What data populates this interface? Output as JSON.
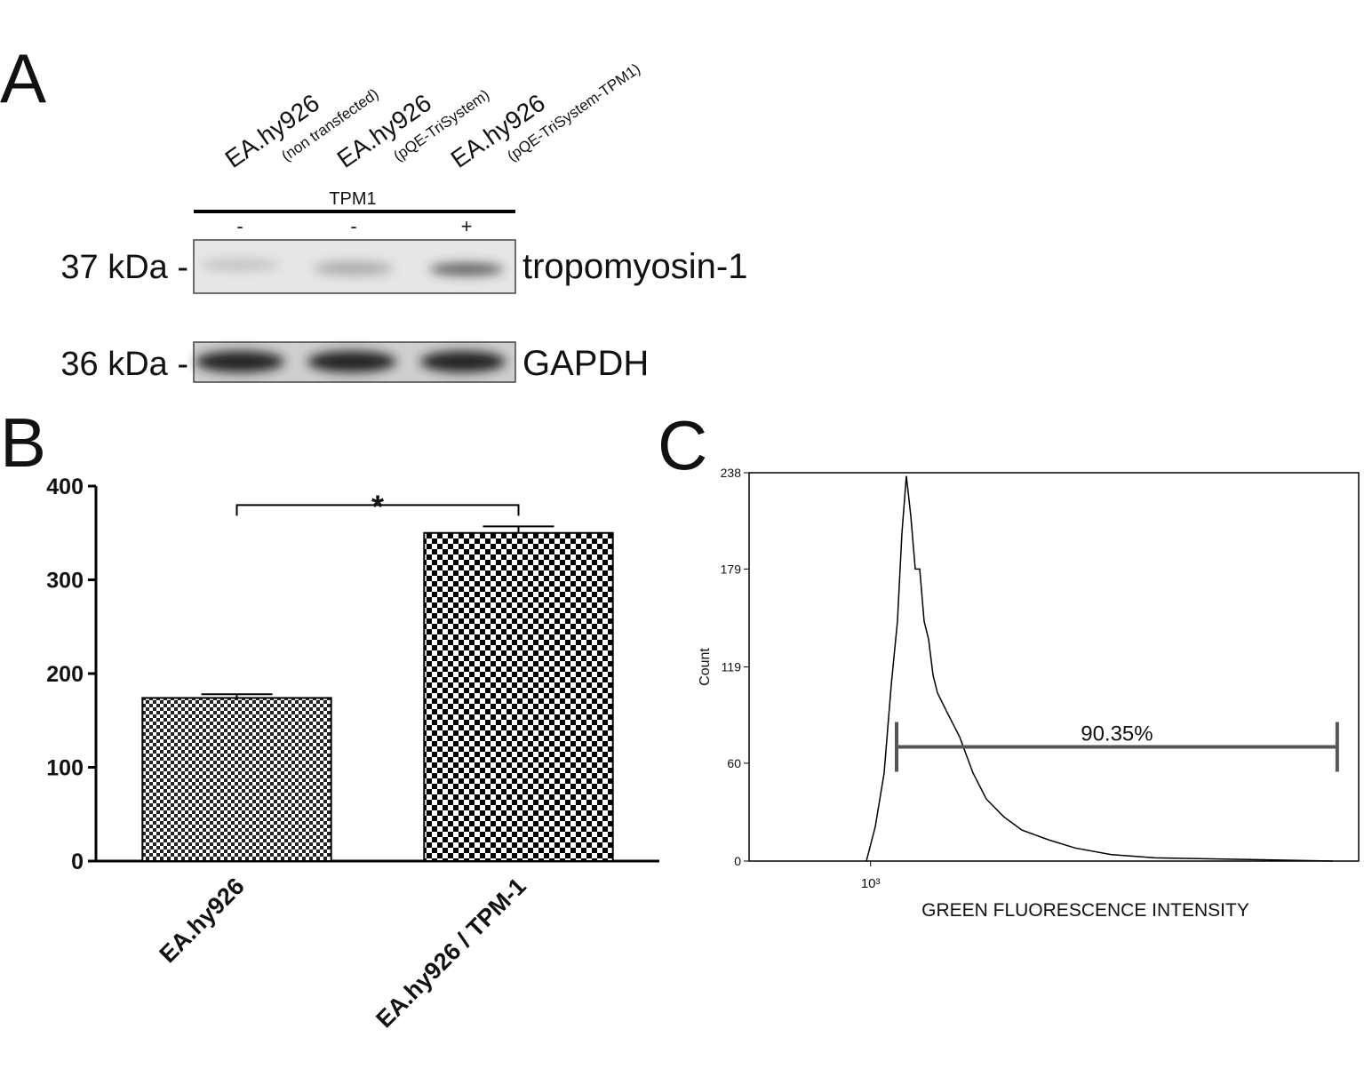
{
  "panel_a": {
    "label": "A",
    "lanes": [
      {
        "name": "EA.hy926",
        "note": "(non transfected)",
        "sign": "-"
      },
      {
        "name": "EA.hy926",
        "note": "(pQE-TriSystem)",
        "sign": "-"
      },
      {
        "name": "EA.hy926",
        "note": "(pQE-TriSystem-TPM1)",
        "sign": "+"
      }
    ],
    "group": "TPM1",
    "blots": [
      {
        "size": "37 kDa -",
        "name": "tropomyosin-1"
      },
      {
        "size": "36 kDa -",
        "name": "GAPDH"
      }
    ]
  },
  "chart_data": [
    {
      "type": "bar",
      "panel": "B",
      "categories": [
        "EA.hy926",
        "EA.hy926 / TPM-1"
      ],
      "values": [
        174,
        350
      ],
      "errors": [
        4,
        7
      ],
      "ylim": [
        0,
        400
      ],
      "yticks": [
        0,
        100,
        200,
        300,
        400
      ],
      "annotation": "*"
    },
    {
      "type": "line",
      "panel": "C",
      "ylabel": "Count",
      "xlabel": "GREEN FLUORESCENCE INTENSITY",
      "xscale": "log",
      "xlim": [
        400,
        40000
      ],
      "xticks": [
        {
          "value": 1000,
          "label": "10³"
        }
      ],
      "ylim": [
        0,
        238
      ],
      "yticks": [
        0,
        60,
        119,
        179,
        238
      ],
      "x": [
        969,
        1036,
        1108,
        1169,
        1225,
        1267,
        1310,
        1354,
        1401,
        1449,
        1498,
        1549,
        1602,
        1657,
        1772,
        1959,
        2166,
        2395,
        2738,
        3131,
        3830,
        4682,
        6123,
        8557,
        16730,
        32710
      ],
      "values": [
        0,
        21,
        54,
        108,
        147,
        201,
        236,
        212,
        179,
        179,
        147,
        136,
        114,
        103,
        92,
        76,
        54,
        38,
        27,
        19,
        13,
        8,
        4,
        2,
        1,
        0
      ],
      "color": "#000000",
      "gate": {
        "range": [
          1217,
          33800
        ],
        "level": 70,
        "label": "90.35%",
        "color": "#555555"
      }
    }
  ]
}
